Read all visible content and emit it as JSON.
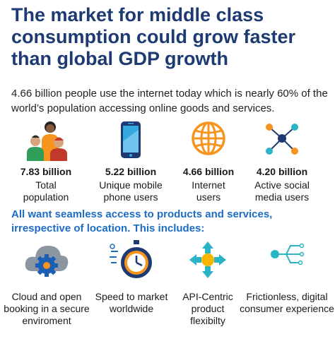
{
  "title": "The market for middle class consumption could grow faster than global GDP growth",
  "intro": "4.66 billion people use the internet today which is nearly 60% of the world’s population accessing online goods and services.",
  "stats": [
    {
      "value": "7.83 billion",
      "label": "Total population",
      "icon": "people-group-icon"
    },
    {
      "value": "5.22 billion",
      "label": "Unique mobile phone users",
      "icon": "mobile-phone-icon"
    },
    {
      "value": "4.66 billion",
      "label": "Internet users",
      "icon": "globe-icon"
    },
    {
      "value": "4.20 billion",
      "label": "Active social media users",
      "icon": "social-network-icon"
    }
  ],
  "subhead": "All want seamless access to products and services, irrespective of location. This includes:",
  "features": [
    {
      "label": "Cloud and open booking in a secure enviroment",
      "icon": "cloud-gear-icon"
    },
    {
      "label": "Speed to market worldwide",
      "icon": "stopwatch-icon"
    },
    {
      "label": "API-Centric product flexibilty",
      "icon": "api-arrows-icon"
    },
    {
      "label": "Frictionless, digital consumer experience",
      "icon": "digital-circuit-icon"
    }
  ],
  "colors": {
    "title": "#1d3b72",
    "subhead": "#1c6cc4",
    "orange": "#f7941d",
    "teal": "#2bb5c4",
    "navy": "#1d3b72",
    "gray": "#6b7280"
  }
}
